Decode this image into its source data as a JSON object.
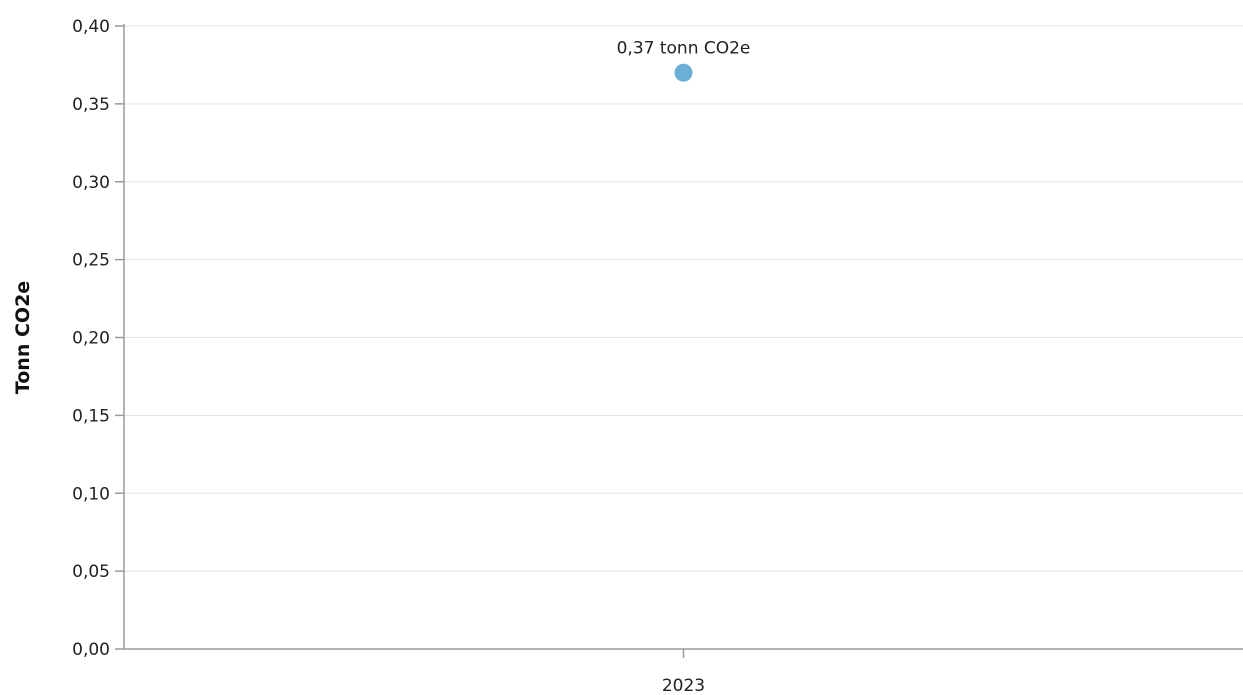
{
  "chart_data": {
    "type": "scatter",
    "categories": [
      "2023"
    ],
    "series": [
      {
        "values": [
          0.37
        ],
        "labels": [
          "0,37 tonn CO2e"
        ],
        "color": "#6baed6"
      }
    ],
    "ylabel": "Tonn CO2e",
    "ylim": [
      0,
      0.4
    ],
    "yticks": [
      0,
      0.05,
      0.1,
      0.15,
      0.2,
      0.25,
      0.3,
      0.35,
      0.4
    ],
    "ytick_labels": [
      "0,00",
      "0,05",
      "0,10",
      "0,15",
      "0,20",
      "0,25",
      "0,30",
      "0,35",
      "0,40"
    ],
    "grid": true,
    "legend": "none"
  }
}
